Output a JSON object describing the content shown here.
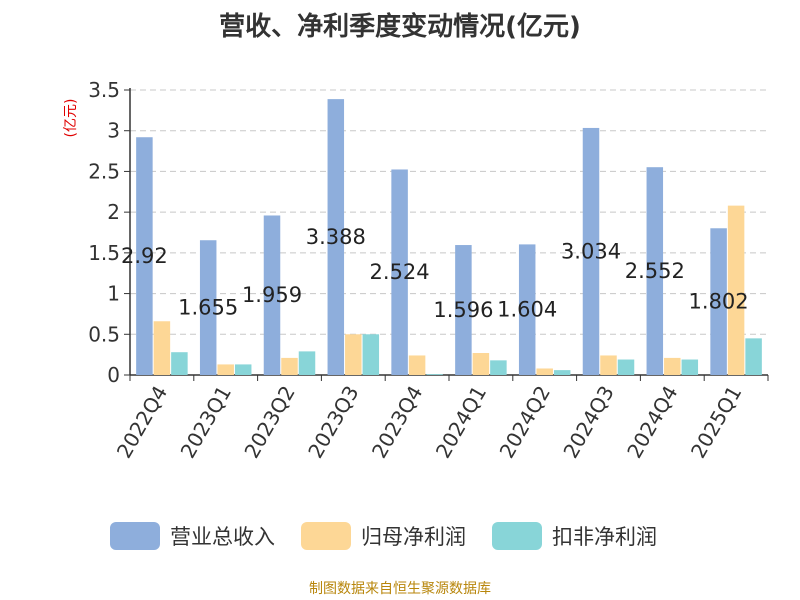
{
  "chart_data": {
    "type": "bar",
    "title": "营收、净利季度变动情况(亿元)",
    "ylabel": "(亿元)",
    "ylim": [
      0,
      3.5
    ],
    "yticks": [
      "0",
      "0.5",
      "1",
      "1.5",
      "2",
      "2.5",
      "3",
      "3.5"
    ],
    "grid": true,
    "legend_position": "bottom",
    "categories": [
      "2022Q4",
      "2023Q1",
      "2023Q2",
      "2023Q3",
      "2023Q4",
      "2024Q1",
      "2024Q2",
      "2024Q3",
      "2024Q4",
      "2025Q1"
    ],
    "series": [
      {
        "name": "营业总收入",
        "color": "#8eaedc",
        "values": [
          2.92,
          1.655,
          1.959,
          3.388,
          2.524,
          1.596,
          1.604,
          3.034,
          2.552,
          1.802
        ],
        "labels": [
          "2.92",
          "1.655",
          "1.959",
          "3.388",
          "2.524",
          "1.596",
          "1.604",
          "3.034",
          "2.552",
          "1.802"
        ]
      },
      {
        "name": "归母净利润",
        "color": "#fdd796",
        "values": [
          0.66,
          0.13,
          0.21,
          0.5,
          0.24,
          0.27,
          0.08,
          0.24,
          0.21,
          2.08
        ]
      },
      {
        "name": "扣非净利润",
        "color": "#88d5d8",
        "values": [
          0.28,
          0.13,
          0.29,
          0.5,
          0.01,
          0.18,
          0.06,
          0.19,
          0.19,
          0.45
        ]
      }
    ]
  },
  "footer": {
    "source": "制图数据来自恒生聚源数据库"
  }
}
